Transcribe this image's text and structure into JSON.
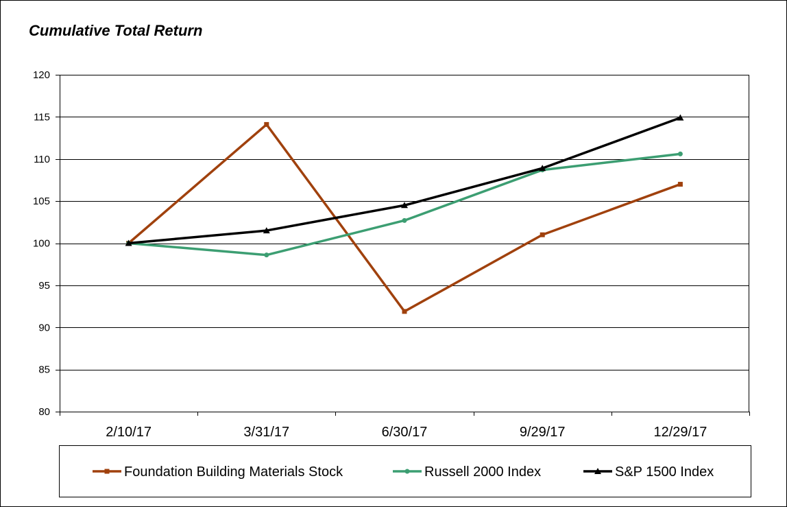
{
  "chart_data": {
    "type": "line",
    "title": "Cumulative  Total Return",
    "xlabel": "",
    "ylabel": "",
    "categories": [
      "2/10/17",
      "3/31/17",
      "6/30/17",
      "9/29/17",
      "12/29/17"
    ],
    "ylim": [
      80,
      120
    ],
    "yticks": [
      80,
      85,
      90,
      95,
      100,
      105,
      110,
      115,
      120
    ],
    "grid": true,
    "legend_position": "bottom",
    "series": [
      {
        "name": "Foundation Building Materials Stock",
        "values": [
          100.0,
          114.1,
          91.9,
          101.0,
          107.0
        ],
        "color": "#A0410D",
        "marker": "square"
      },
      {
        "name": "Russell 2000 Index",
        "values": [
          100.0,
          98.6,
          102.7,
          108.7,
          110.6
        ],
        "color": "#3C9E72",
        "marker": "circle"
      },
      {
        "name": "S&P 1500 Index",
        "values": [
          100.0,
          101.5,
          104.5,
          108.9,
          114.9
        ],
        "color": "#000000",
        "marker": "triangle"
      }
    ]
  }
}
